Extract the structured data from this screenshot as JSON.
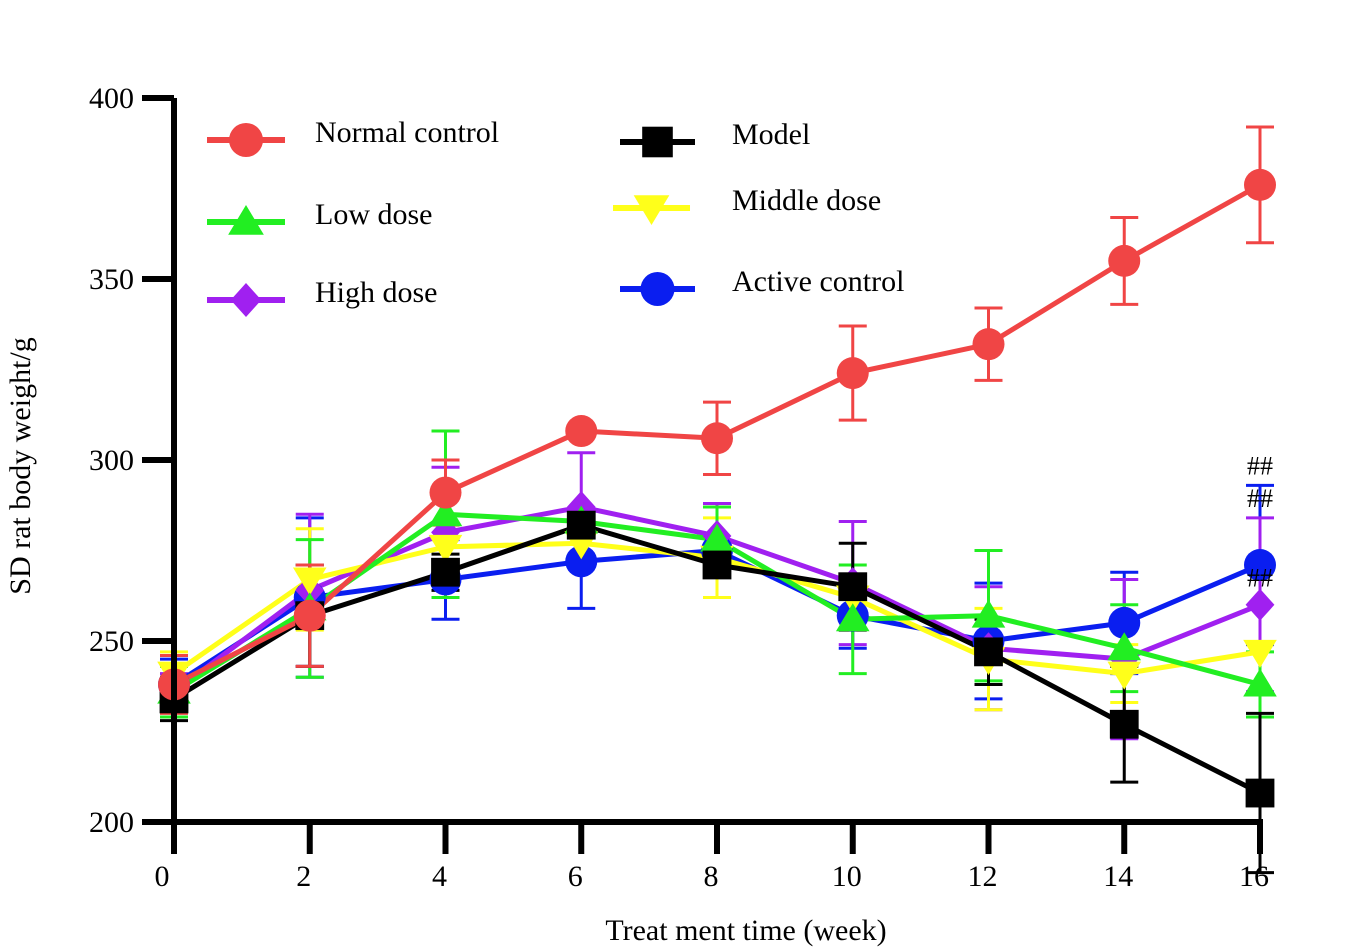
{
  "chart_data": {
    "type": "line",
    "title": "",
    "xlabel": "Treat ment time (week)",
    "ylabel": "SD rat body weight/g",
    "x": [
      0,
      2,
      4,
      6,
      8,
      10,
      12,
      14,
      16
    ],
    "xlim": [
      0,
      16
    ],
    "ylim": [
      200,
      400
    ],
    "xticks": [
      "0",
      "2",
      "4",
      "6",
      "8",
      "10",
      "12",
      "14",
      "16"
    ],
    "yticks": [
      "200",
      "250",
      "300",
      "350",
      "400"
    ],
    "grid": false,
    "legend_position": "top-left",
    "series": [
      {
        "name": "Normal control",
        "color": "#f04545",
        "marker": "circle",
        "values": [
          238,
          257,
          291,
          308,
          306,
          324,
          332,
          355,
          376
        ],
        "errors": [
          8,
          14,
          9,
          0,
          10,
          13,
          10,
          12,
          16
        ]
      },
      {
        "name": "Model",
        "color": "#000000",
        "marker": "square",
        "values": [
          234,
          257,
          269,
          282,
          271,
          265,
          247,
          227,
          208
        ],
        "errors": [
          6,
          14,
          5,
          0,
          0,
          12,
          9,
          16,
          22
        ]
      },
      {
        "name": "Low dose",
        "color": "#22ee22",
        "marker": "triangle-up",
        "values": [
          236,
          259,
          285,
          283,
          278,
          256,
          257,
          248,
          238
        ],
        "errors": [
          7,
          19,
          23,
          0,
          9,
          15,
          18,
          12,
          9
        ]
      },
      {
        "name": "Middle dose",
        "color": "#ffff1a",
        "marker": "triangle-down",
        "values": [
          241,
          267,
          276,
          277,
          273,
          262,
          245,
          241,
          247
        ],
        "errors": [
          6,
          14,
          0,
          0,
          11,
          0,
          14,
          8,
          0
        ]
      },
      {
        "name": "High dose",
        "color": "#a020f0",
        "marker": "diamond",
        "values": [
          236,
          264,
          280,
          287,
          279,
          266,
          248,
          245,
          260
        ],
        "errors": [
          5,
          21,
          18,
          15,
          9,
          17,
          17,
          22,
          24
        ]
      },
      {
        "name": "Active control",
        "color": "#0a1ef0",
        "marker": "circle",
        "values": [
          238,
          262,
          267,
          272,
          275,
          257,
          250,
          255,
          271
        ],
        "errors": [
          7,
          22,
          11,
          13,
          0,
          9,
          16,
          14,
          22
        ]
      }
    ],
    "annotations": [
      {
        "text": "##",
        "x": 16,
        "y": 296
      },
      {
        "text": "##",
        "x": 16,
        "y": 287
      },
      {
        "text": "##",
        "x": 16,
        "y": 265
      }
    ]
  }
}
